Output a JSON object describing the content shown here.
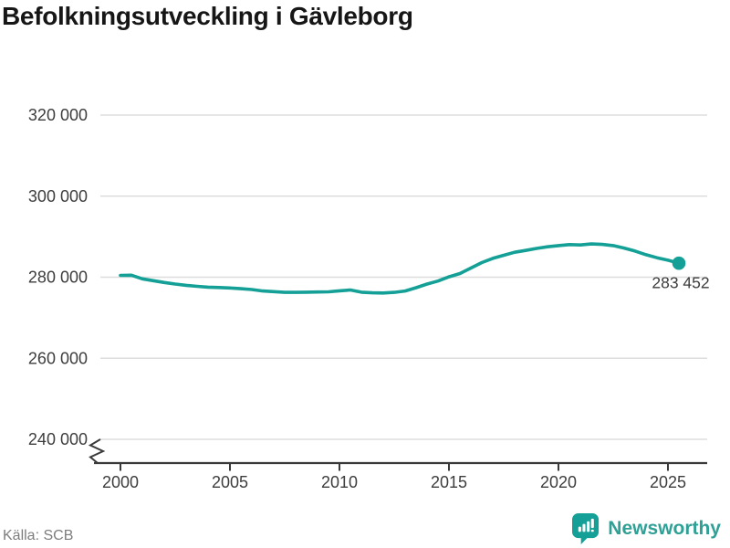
{
  "title": "Befolkningsutveckling i Gävleborg",
  "source_label": "Källa: SCB",
  "branding": {
    "name": "Newsworthy",
    "icon": "speech-bubble-with-bar-chart-and-exclamation"
  },
  "colors": {
    "accent": "#14a096",
    "grid": "#dddddd",
    "axis": "#3a3a3a",
    "axis_text": "#3d3d3d",
    "title": "#161616",
    "source": "#7d7d7d",
    "brand_text": "#2fa096"
  },
  "chart_data": {
    "type": "line",
    "title": "Befolkningsutveckling i Gävleborg",
    "xlabel": "",
    "ylabel": "",
    "grid": "horizontal",
    "legend": "none",
    "axis_break_below_min": true,
    "xlim": [
      1999.1,
      2026.8
    ],
    "ylim": [
      240000,
      320000
    ],
    "xticks": [
      {
        "value": 2000,
        "label": "2000"
      },
      {
        "value": 2005,
        "label": "2005"
      },
      {
        "value": 2010,
        "label": "2010"
      },
      {
        "value": 2015,
        "label": "2015"
      },
      {
        "value": 2020,
        "label": "2020"
      },
      {
        "value": 2025,
        "label": "2025"
      }
    ],
    "yticks": [
      {
        "value": 320000,
        "label": "320 000"
      },
      {
        "value": 300000,
        "label": "300 000"
      },
      {
        "value": 280000,
        "label": "280 000"
      },
      {
        "value": 260000,
        "label": "260 000"
      },
      {
        "value": 240000,
        "label": "240 000"
      }
    ],
    "end_label": "283 452",
    "end_value": 283452,
    "series": [
      {
        "name": "Befolkning i Gävleborg",
        "color": "#14a096",
        "points": [
          [
            2000.0,
            280450
          ],
          [
            2000.5,
            280500
          ],
          [
            2001.0,
            279600
          ],
          [
            2001.5,
            279150
          ],
          [
            2002.0,
            278700
          ],
          [
            2002.5,
            278300
          ],
          [
            2003.0,
            278000
          ],
          [
            2003.5,
            277750
          ],
          [
            2004.0,
            277550
          ],
          [
            2004.5,
            277450
          ],
          [
            2005.0,
            277350
          ],
          [
            2005.5,
            277150
          ],
          [
            2006.0,
            276950
          ],
          [
            2006.5,
            276600
          ],
          [
            2007.0,
            276450
          ],
          [
            2007.5,
            276250
          ],
          [
            2008.0,
            276250
          ],
          [
            2008.5,
            276300
          ],
          [
            2009.0,
            276350
          ],
          [
            2009.5,
            276400
          ],
          [
            2010.0,
            276650
          ],
          [
            2010.5,
            276850
          ],
          [
            2011.0,
            276300
          ],
          [
            2011.5,
            276150
          ],
          [
            2012.0,
            276100
          ],
          [
            2012.5,
            276250
          ],
          [
            2013.0,
            276600
          ],
          [
            2013.5,
            277400
          ],
          [
            2014.0,
            278300
          ],
          [
            2014.5,
            279050
          ],
          [
            2015.0,
            280100
          ],
          [
            2015.5,
            280900
          ],
          [
            2016.0,
            282250
          ],
          [
            2016.5,
            283600
          ],
          [
            2017.0,
            284650
          ],
          [
            2017.5,
            285400
          ],
          [
            2018.0,
            286150
          ],
          [
            2018.5,
            286600
          ],
          [
            2019.0,
            287100
          ],
          [
            2019.5,
            287500
          ],
          [
            2020.0,
            287800
          ],
          [
            2020.5,
            288050
          ],
          [
            2021.0,
            287950
          ],
          [
            2021.5,
            288200
          ],
          [
            2022.0,
            288100
          ],
          [
            2022.5,
            287800
          ],
          [
            2023.0,
            287200
          ],
          [
            2023.5,
            286450
          ],
          [
            2024.0,
            285550
          ],
          [
            2024.5,
            284800
          ],
          [
            2025.0,
            284200
          ],
          [
            2025.5,
            283452
          ]
        ]
      }
    ]
  }
}
